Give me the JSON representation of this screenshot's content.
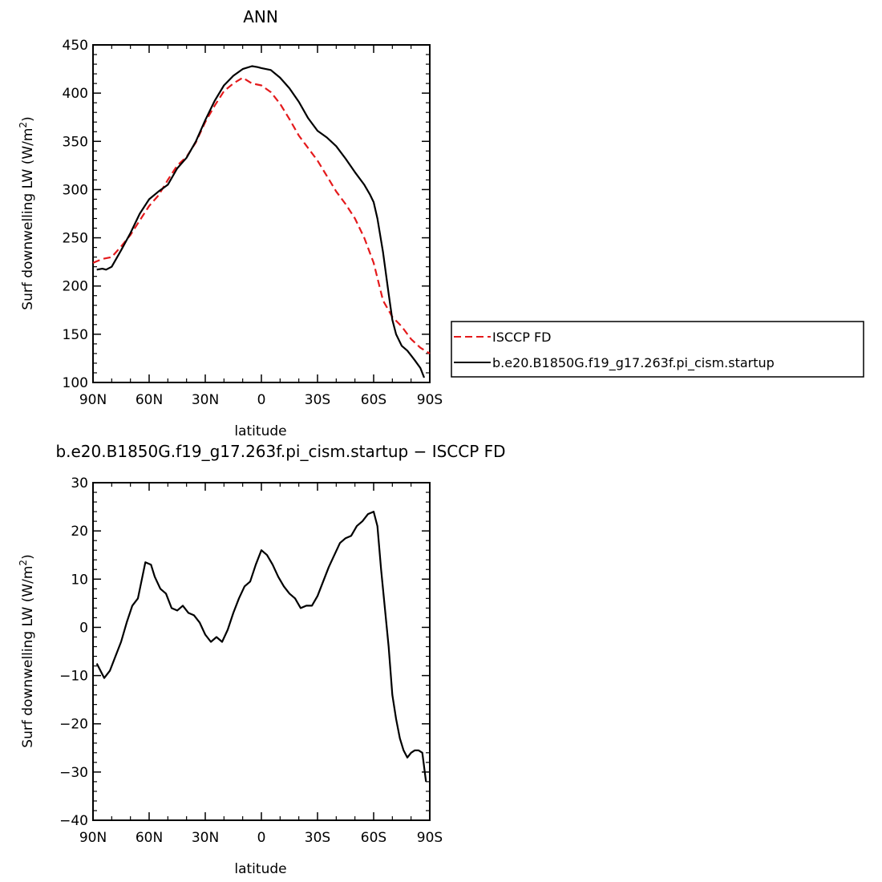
{
  "chart_data": [
    {
      "type": "line",
      "title": "ANN",
      "xlabel": "latitude",
      "ylabel": "Surf downwelling LW (W/m²)",
      "ylabel_main": "Surf downwelling LW (W/m",
      "ylabel_sup": "2",
      "ylabel_end": ")",
      "xlim": [
        90,
        -90
      ],
      "ylim": [
        100,
        450
      ],
      "xticks": [
        {
          "value": 90,
          "label": "90N"
        },
        {
          "value": 60,
          "label": "60N"
        },
        {
          "value": 30,
          "label": "30N"
        },
        {
          "value": 0,
          "label": "0"
        },
        {
          "value": -30,
          "label": "30S"
        },
        {
          "value": -60,
          "label": "60S"
        },
        {
          "value": -90,
          "label": "90S"
        }
      ],
      "yticks": [
        100,
        150,
        200,
        250,
        300,
        350,
        400,
        450
      ],
      "legend_position": "right",
      "series": [
        {
          "name": "ISCCP FD",
          "color": "#e41a1c",
          "dash": "dashed",
          "x": [
            90,
            85,
            80,
            75,
            70,
            65,
            60,
            55,
            50,
            45,
            40,
            35,
            30,
            25,
            20,
            15,
            10,
            5,
            0,
            -5,
            -10,
            -15,
            -20,
            -25,
            -30,
            -35,
            -40,
            -45,
            -50,
            -55,
            -60,
            -65,
            -70,
            -75,
            -80,
            -85,
            -90
          ],
          "y": [
            224,
            228,
            230,
            241,
            253,
            268,
            283,
            294,
            310,
            325,
            334,
            349,
            370,
            387,
            402,
            410,
            416,
            410,
            408,
            401,
            389,
            373,
            356,
            343,
            330,
            314,
            298,
            285,
            270,
            250,
            224,
            185,
            168,
            158,
            145,
            136,
            130
          ]
        },
        {
          "name": "b.e20.B1850G.f19_g17.263f.pi_cism.startup",
          "color": "#000000",
          "dash": "solid",
          "x": [
            88,
            85,
            83,
            80,
            75,
            70,
            65,
            60,
            55,
            50,
            45,
            40,
            35,
            30,
            25,
            20,
            15,
            10,
            5,
            2,
            0,
            -5,
            -10,
            -15,
            -20,
            -25,
            -30,
            -35,
            -40,
            -45,
            -50,
            -55,
            -58,
            -60,
            -62,
            -65,
            -68,
            -70,
            -72,
            -75,
            -78,
            -80,
            -82,
            -85,
            -87
          ],
          "y": [
            217,
            218,
            217,
            220,
            237,
            255,
            275,
            290,
            298,
            305,
            322,
            333,
            350,
            372,
            392,
            408,
            418,
            425,
            428,
            427,
            426,
            424,
            416,
            405,
            391,
            374,
            361,
            354,
            345,
            332,
            318,
            305,
            295,
            287,
            270,
            235,
            192,
            165,
            150,
            138,
            133,
            128,
            123,
            115,
            105
          ]
        }
      ]
    },
    {
      "type": "line",
      "title": "b.e20.B1850G.f19_g17.263f.pi_cism.startup − ISCCP FD",
      "xlabel": "latitude",
      "ylabel": "Surf downwelling LW (W/m²)",
      "ylabel_main": "Surf downwelling LW (W/m",
      "ylabel_sup": "2",
      "ylabel_end": ")",
      "xlim": [
        90,
        -90
      ],
      "ylim": [
        -40,
        30
      ],
      "xticks": [
        {
          "value": 90,
          "label": "90N"
        },
        {
          "value": 60,
          "label": "60N"
        },
        {
          "value": 30,
          "label": "30N"
        },
        {
          "value": 0,
          "label": "0"
        },
        {
          "value": -30,
          "label": "30S"
        },
        {
          "value": -60,
          "label": "60S"
        },
        {
          "value": -90,
          "label": "90S"
        }
      ],
      "yticks": [
        -40,
        -30,
        -20,
        -10,
        0,
        10,
        20,
        30
      ],
      "series": [
        {
          "color": "#000000",
          "dash": "solid",
          "x": [
            88,
            84,
            81,
            78,
            75,
            72,
            69,
            66,
            62,
            59,
            57,
            54,
            51,
            48,
            45,
            42,
            39,
            36,
            33,
            30,
            27,
            24,
            21,
            18,
            15,
            12,
            9,
            6,
            3,
            0,
            -3,
            -6,
            -9,
            -12,
            -15,
            -18,
            -21,
            -24,
            -27,
            -30,
            -33,
            -36,
            -39,
            -42,
            -45,
            -48,
            -51,
            -54,
            -57,
            -60,
            -62,
            -64,
            -66,
            -68,
            -70,
            -72,
            -74,
            -76,
            -78,
            -80,
            -82,
            -84,
            -86,
            -88
          ],
          "y": [
            -7.5,
            -10.5,
            -9.0,
            -6.0,
            -3.0,
            1.0,
            4.5,
            6.0,
            13.5,
            13.0,
            10.5,
            8.0,
            7.0,
            4.0,
            3.5,
            4.5,
            3.0,
            2.5,
            1.0,
            -1.5,
            -3.0,
            -2.0,
            -3.0,
            -0.5,
            3.0,
            6.0,
            8.5,
            9.5,
            13.0,
            16.0,
            15.0,
            13.0,
            10.5,
            8.5,
            7.0,
            6.0,
            4.0,
            4.5,
            4.5,
            6.5,
            9.5,
            12.5,
            15.0,
            17.5,
            18.5,
            19.0,
            21.0,
            22.0,
            23.5,
            24.0,
            21.0,
            12.0,
            4.0,
            -4.0,
            -14.0,
            -19.0,
            -23.0,
            -25.5,
            -27.0,
            -26.0,
            -25.5,
            -25.5,
            -26.0,
            -32.0
          ]
        }
      ]
    }
  ]
}
